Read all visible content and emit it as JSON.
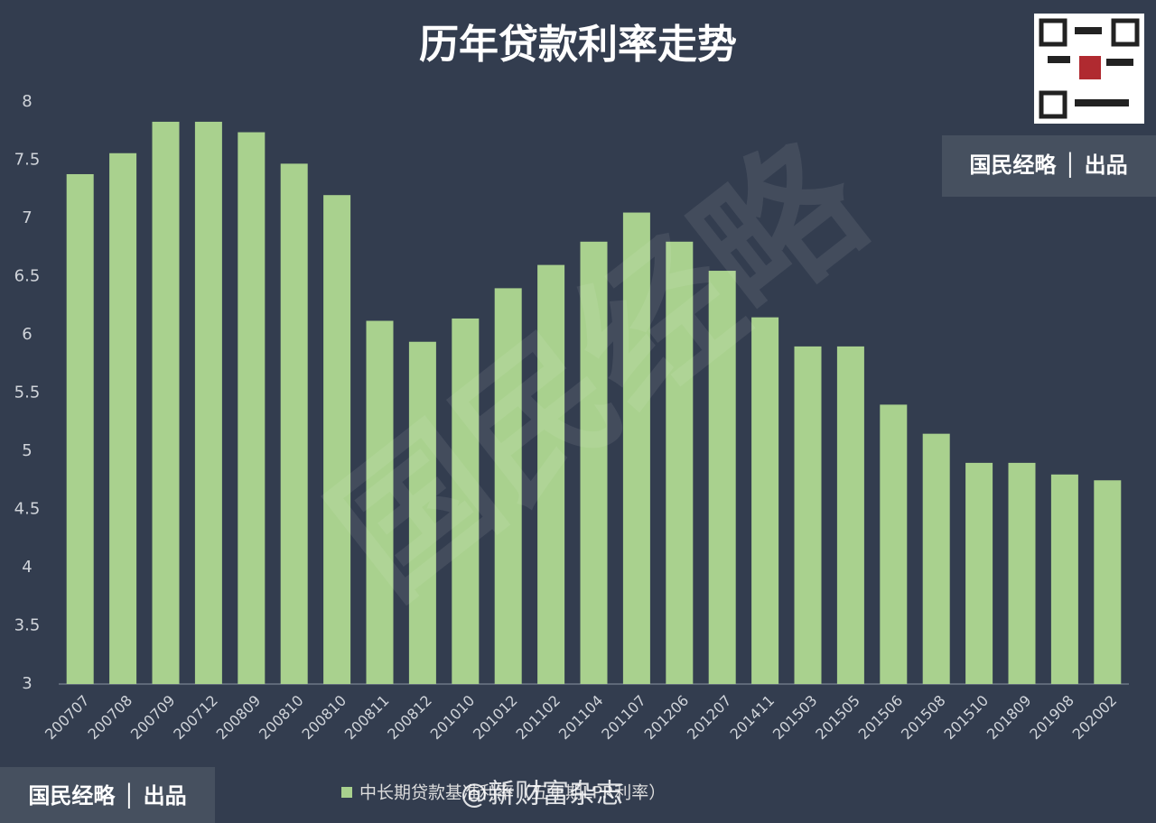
{
  "chart_data": {
    "type": "bar",
    "title": "历年贷款利率走势",
    "categories": [
      "200707",
      "200708",
      "200709",
      "200712",
      "200809",
      "200810",
      "200810",
      "200811",
      "200812",
      "201010",
      "201012",
      "201102",
      "201104",
      "201107",
      "201206",
      "201207",
      "201411",
      "201503",
      "201505",
      "201506",
      "201508",
      "201510",
      "201809",
      "201908",
      "202002"
    ],
    "series": [
      {
        "name": "中长期贷款基准利率（五年期LPR利率）",
        "color": "#a9d18e",
        "values": [
          7.38,
          7.56,
          7.83,
          7.83,
          7.74,
          7.47,
          7.2,
          6.12,
          5.94,
          6.14,
          6.4,
          6.6,
          6.8,
          7.05,
          6.8,
          6.55,
          6.15,
          5.9,
          5.9,
          5.4,
          5.15,
          4.9,
          4.9,
          4.8,
          4.75
        ]
      }
    ],
    "ylim": [
      3,
      8
    ],
    "yticks": [
      3,
      3.5,
      4,
      4.5,
      5,
      5.5,
      6,
      6.5,
      7,
      7.5,
      8
    ],
    "grid": false,
    "annotations": [
      "国民经略 │ 出品",
      "@新财富杂志",
      "国民经略"
    ]
  }
}
